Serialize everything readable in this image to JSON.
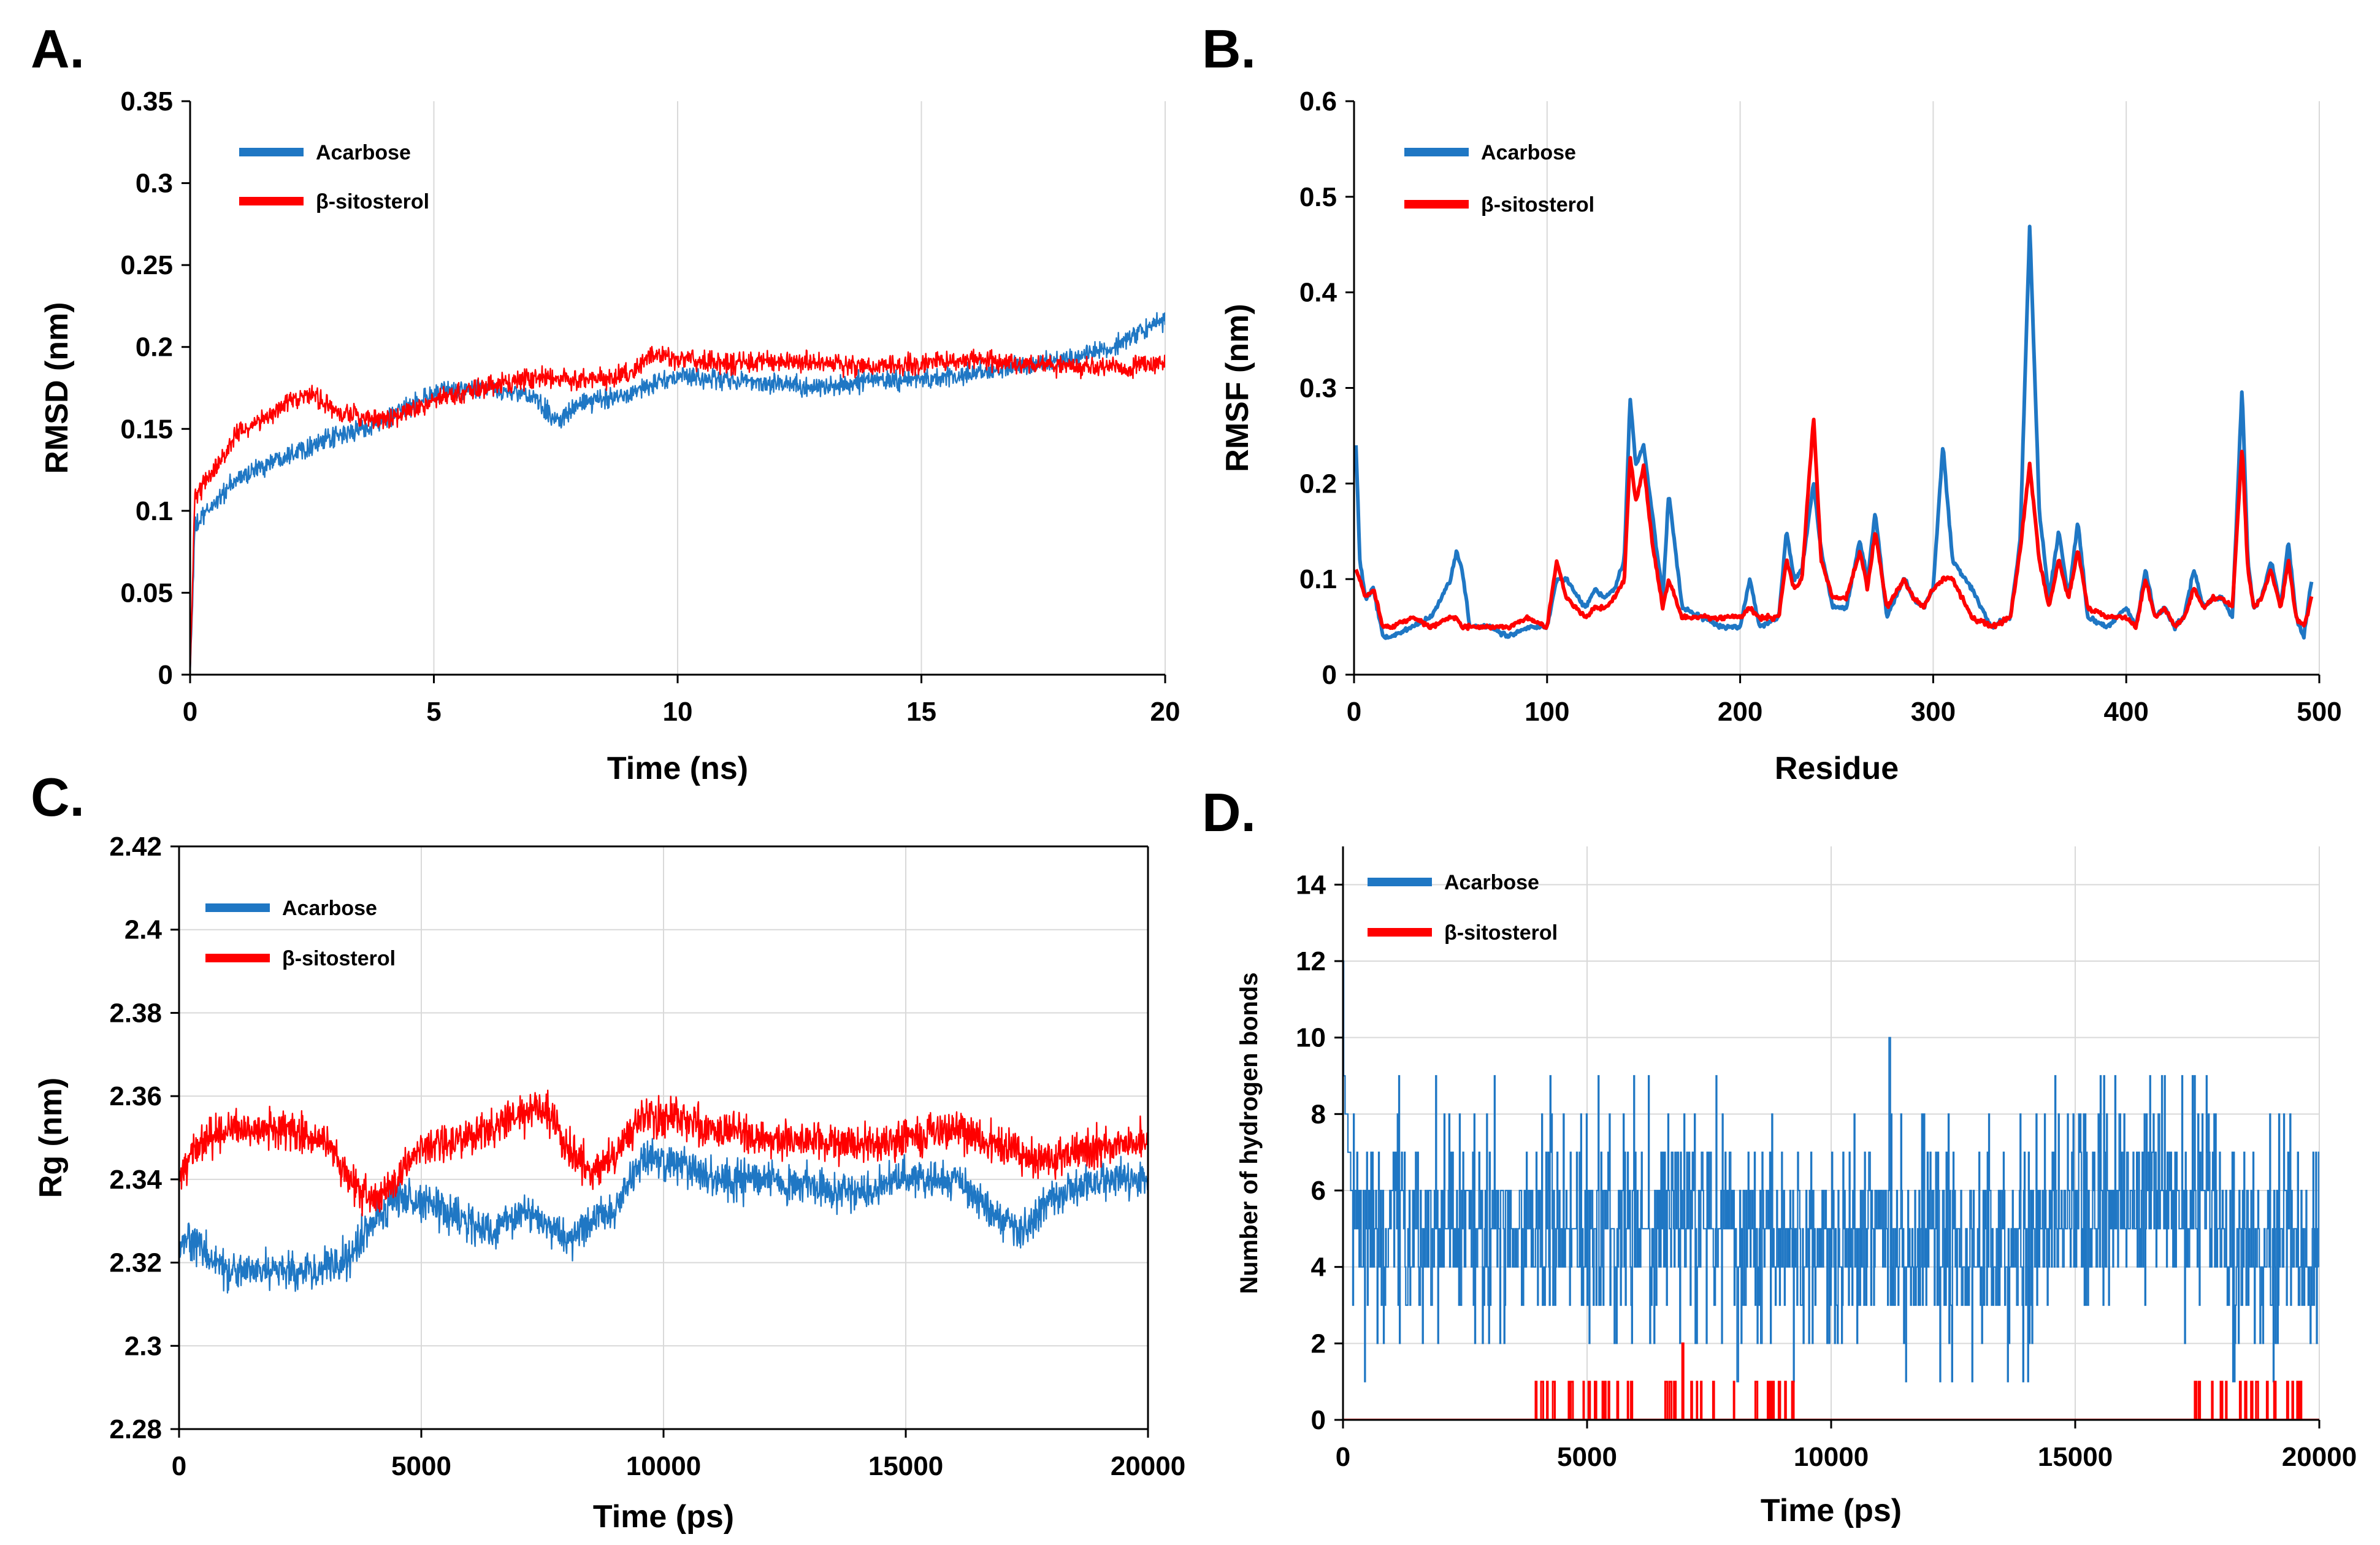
{
  "colors": {
    "acarbose": "#1f77c4",
    "sitosterol": "#ff0000",
    "grid": "#d9d9d9",
    "axis": "#000000"
  },
  "chart_data": [
    {
      "panel": "A.",
      "type": "line",
      "xlabel": "Time (ns)",
      "ylabel": "RMSD (nm)",
      "xlim": [
        0,
        20
      ],
      "ylim": [
        0,
        0.35
      ],
      "xticks": [
        0,
        5,
        10,
        15,
        20
      ],
      "yticks": [
        0,
        0.05,
        0.1,
        0.15,
        0.2,
        0.25,
        0.3,
        0.35
      ],
      "ytick_labels": [
        "0",
        "0.05",
        "0.1",
        "0.15",
        "0.2",
        "0.25",
        "0.3",
        "0.35"
      ],
      "grid": "vertical",
      "legend": "top-left",
      "noise": 0.006,
      "series": [
        {
          "name": "Acarbose",
          "color": "#1f77c4",
          "x": [
            0,
            0.1,
            0.5,
            1,
            2,
            3,
            4,
            5,
            6,
            7,
            7.5,
            8,
            9,
            10,
            11,
            12,
            13,
            14,
            15,
            16,
            17,
            18,
            19,
            19.5,
            20
          ],
          "y": [
            0.0,
            0.09,
            0.105,
            0.12,
            0.135,
            0.145,
            0.155,
            0.172,
            0.175,
            0.17,
            0.155,
            0.165,
            0.172,
            0.182,
            0.18,
            0.178,
            0.175,
            0.18,
            0.18,
            0.183,
            0.188,
            0.193,
            0.2,
            0.21,
            0.215
          ]
        },
        {
          "name": "β-sitosterol",
          "color": "#ff0000",
          "x": [
            0,
            0.1,
            0.5,
            1,
            2,
            2.5,
            3,
            4,
            5,
            6,
            7,
            8,
            9,
            9.5,
            10,
            11,
            12,
            13,
            14,
            15,
            16,
            17,
            18,
            19,
            20
          ],
          "y": [
            0.0,
            0.11,
            0.125,
            0.148,
            0.165,
            0.172,
            0.16,
            0.155,
            0.168,
            0.175,
            0.182,
            0.18,
            0.183,
            0.196,
            0.193,
            0.19,
            0.192,
            0.19,
            0.188,
            0.19,
            0.192,
            0.19,
            0.188,
            0.187,
            0.19
          ]
        }
      ]
    },
    {
      "panel": "B.",
      "type": "line",
      "xlabel": "Residue",
      "ylabel": "RMSF (nm)",
      "xlim": [
        0,
        500
      ],
      "ylim": [
        0,
        0.6
      ],
      "xticks": [
        0,
        100,
        200,
        300,
        400,
        500
      ],
      "yticks": [
        0,
        0.1,
        0.2,
        0.3,
        0.4,
        0.5,
        0.6
      ],
      "ytick_labels": [
        "0",
        "0.1",
        "0.2",
        "0.3",
        "0.4",
        "0.5",
        "0.6"
      ],
      "grid": "vertical",
      "legend": "top-left",
      "noise": 0.004,
      "series": [
        {
          "name": "Acarbose",
          "color": "#1f77c4",
          "x": [
            1,
            3,
            6,
            10,
            15,
            20,
            30,
            40,
            50,
            53,
            56,
            60,
            70,
            80,
            90,
            100,
            105,
            110,
            120,
            125,
            130,
            135,
            140,
            143,
            146,
            150,
            155,
            160,
            163,
            170,
            180,
            190,
            200,
            205,
            210,
            220,
            224,
            228,
            232,
            238,
            242,
            248,
            255,
            262,
            266,
            270,
            276,
            285,
            290,
            295,
            300,
            305,
            310,
            320,
            330,
            340,
            345,
            350,
            355,
            360,
            365,
            370,
            375,
            380,
            390,
            400,
            405,
            410,
            415,
            420,
            425,
            430,
            435,
            440,
            445,
            450,
            455,
            460,
            463,
            466,
            470,
            475,
            480,
            484,
            488,
            492,
            496
          ],
          "y": [
            0.24,
            0.12,
            0.08,
            0.09,
            0.04,
            0.04,
            0.05,
            0.06,
            0.1,
            0.13,
            0.11,
            0.05,
            0.05,
            0.04,
            0.05,
            0.05,
            0.1,
            0.1,
            0.07,
            0.09,
            0.08,
            0.09,
            0.12,
            0.29,
            0.22,
            0.24,
            0.16,
            0.08,
            0.19,
            0.07,
            0.06,
            0.05,
            0.05,
            0.1,
            0.05,
            0.06,
            0.15,
            0.1,
            0.11,
            0.2,
            0.13,
            0.07,
            0.07,
            0.14,
            0.1,
            0.17,
            0.06,
            0.1,
            0.08,
            0.07,
            0.09,
            0.24,
            0.12,
            0.09,
            0.05,
            0.06,
            0.14,
            0.47,
            0.17,
            0.08,
            0.15,
            0.08,
            0.16,
            0.06,
            0.05,
            0.07,
            0.05,
            0.11,
            0.06,
            0.07,
            0.05,
            0.06,
            0.11,
            0.07,
            0.08,
            0.08,
            0.06,
            0.3,
            0.12,
            0.07,
            0.08,
            0.12,
            0.07,
            0.14,
            0.06,
            0.04,
            0.1
          ]
        },
        {
          "name": "β-sitosterol",
          "color": "#ff0000",
          "x": [
            1,
            3,
            6,
            10,
            15,
            20,
            30,
            40,
            50,
            53,
            56,
            60,
            70,
            80,
            90,
            100,
            105,
            110,
            120,
            125,
            130,
            135,
            140,
            143,
            146,
            150,
            155,
            160,
            163,
            170,
            180,
            190,
            200,
            205,
            210,
            220,
            224,
            228,
            232,
            238,
            242,
            248,
            255,
            262,
            266,
            270,
            276,
            285,
            290,
            295,
            300,
            305,
            310,
            320,
            330,
            340,
            345,
            350,
            355,
            360,
            365,
            370,
            375,
            380,
            390,
            400,
            405,
            410,
            415,
            420,
            425,
            430,
            435,
            440,
            445,
            450,
            455,
            460,
            463,
            466,
            470,
            475,
            480,
            484,
            488,
            492,
            496
          ],
          "y": [
            0.11,
            0.1,
            0.08,
            0.09,
            0.05,
            0.05,
            0.06,
            0.05,
            0.06,
            0.06,
            0.05,
            0.05,
            0.05,
            0.05,
            0.06,
            0.05,
            0.12,
            0.08,
            0.06,
            0.07,
            0.07,
            0.08,
            0.1,
            0.23,
            0.18,
            0.22,
            0.13,
            0.07,
            0.1,
            0.06,
            0.06,
            0.06,
            0.06,
            0.07,
            0.06,
            0.06,
            0.12,
            0.09,
            0.1,
            0.27,
            0.12,
            0.08,
            0.08,
            0.13,
            0.09,
            0.15,
            0.07,
            0.1,
            0.08,
            0.07,
            0.09,
            0.1,
            0.1,
            0.06,
            0.05,
            0.06,
            0.13,
            0.22,
            0.12,
            0.07,
            0.12,
            0.08,
            0.13,
            0.07,
            0.06,
            0.06,
            0.05,
            0.1,
            0.06,
            0.07,
            0.05,
            0.06,
            0.09,
            0.07,
            0.08,
            0.08,
            0.07,
            0.24,
            0.11,
            0.07,
            0.08,
            0.11,
            0.07,
            0.12,
            0.06,
            0.05,
            0.08
          ]
        }
      ]
    },
    {
      "panel": "C.",
      "type": "line",
      "xlabel": "Time (ps)",
      "ylabel": "Rg (nm)",
      "xlim": [
        0,
        20000
      ],
      "ylim": [
        2.28,
        2.42
      ],
      "xticks": [
        0,
        5000,
        10000,
        15000,
        20000
      ],
      "yticks": [
        2.28,
        2.3,
        2.32,
        2.34,
        2.36,
        2.38,
        2.4,
        2.42
      ],
      "ytick_labels": [
        "2.28",
        "2.3",
        "2.32",
        "2.34",
        "2.36",
        "2.38",
        "2.4",
        "2.42"
      ],
      "grid": "both",
      "legend": "top-left",
      "noise": 0.0045,
      "series": [
        {
          "name": "Acarbose",
          "color": "#1f77c4",
          "x": [
            0,
            300,
            1000,
            2000,
            3000,
            3500,
            4000,
            4500,
            5000,
            6000,
            6500,
            7000,
            7500,
            8000,
            8500,
            9000,
            9500,
            10000,
            11000,
            12000,
            13000,
            14000,
            15000,
            16000,
            16500,
            17000,
            17500,
            18000,
            19000,
            20000
          ],
          "y": [
            2.325,
            2.325,
            2.318,
            2.318,
            2.318,
            2.322,
            2.33,
            2.336,
            2.335,
            2.33,
            2.327,
            2.333,
            2.33,
            2.325,
            2.33,
            2.333,
            2.345,
            2.345,
            2.34,
            2.34,
            2.338,
            2.337,
            2.34,
            2.34,
            2.335,
            2.33,
            2.328,
            2.335,
            2.34,
            2.34
          ]
        },
        {
          "name": "β-sitosterol",
          "color": "#ff0000",
          "x": [
            0,
            300,
            1000,
            2000,
            3000,
            3500,
            4000,
            4500,
            5000,
            6000,
            6500,
            7000,
            7500,
            8000,
            8500,
            9000,
            9500,
            10000,
            11000,
            12000,
            13000,
            14000,
            15000,
            16000,
            16500,
            17000,
            17500,
            18000,
            19000,
            20000
          ],
          "y": [
            2.34,
            2.347,
            2.352,
            2.352,
            2.35,
            2.34,
            2.335,
            2.34,
            2.348,
            2.35,
            2.352,
            2.355,
            2.358,
            2.348,
            2.342,
            2.345,
            2.355,
            2.355,
            2.352,
            2.35,
            2.35,
            2.348,
            2.35,
            2.352,
            2.35,
            2.348,
            2.345,
            2.345,
            2.348,
            2.35
          ]
        }
      ]
    },
    {
      "panel": "D.",
      "type": "line",
      "xlabel": "Time (ps)",
      "ylabel": "Number of hydrogen bonds",
      "xlim": [
        0,
        20000
      ],
      "ylim": [
        0,
        15
      ],
      "xticks": [
        0,
        5000,
        10000,
        15000,
        20000
      ],
      "yticks": [
        0,
        2,
        4,
        6,
        8,
        10,
        12,
        14
      ],
      "ytick_labels": [
        "0",
        "2",
        "4",
        "6",
        "8",
        "10",
        "12",
        "14"
      ],
      "grid": "both",
      "legend": "top-left",
      "series": [
        {
          "name": "Acarbose",
          "color": "#1f77c4",
          "style": "steps",
          "start": [
            0,
            12
          ],
          "typical_range": [
            3,
            7
          ],
          "extremes": [
            1,
            10
          ],
          "segments": [
            {
              "x": [
                0,
                3500
              ],
              "mean": 5
            },
            {
              "x": [
                3500,
                6500
              ],
              "mean": 5
            },
            {
              "x": [
                6500,
                8000
              ],
              "mean": 5.5
            },
            {
              "x": [
                8000,
                12000
              ],
              "mean": 4.5
            },
            {
              "x": [
                12000,
                14500
              ],
              "mean": 4.7
            },
            {
              "x": [
                14500,
                18000
              ],
              "mean": 5.6
            },
            {
              "x": [
                18000,
                20000
              ],
              "mean": 4.5
            }
          ]
        },
        {
          "name": "β-sitosterol",
          "color": "#ff0000",
          "style": "pulses",
          "baseline": 0,
          "pulse_value": 1,
          "max_pulse": {
            "x": 6950,
            "y": 2
          },
          "pulse_regions": [
            [
              3900,
              6200
            ],
            [
              6600,
              7700
            ],
            [
              7800,
              9300
            ],
            [
              17200,
              19900
            ]
          ]
        }
      ]
    }
  ]
}
